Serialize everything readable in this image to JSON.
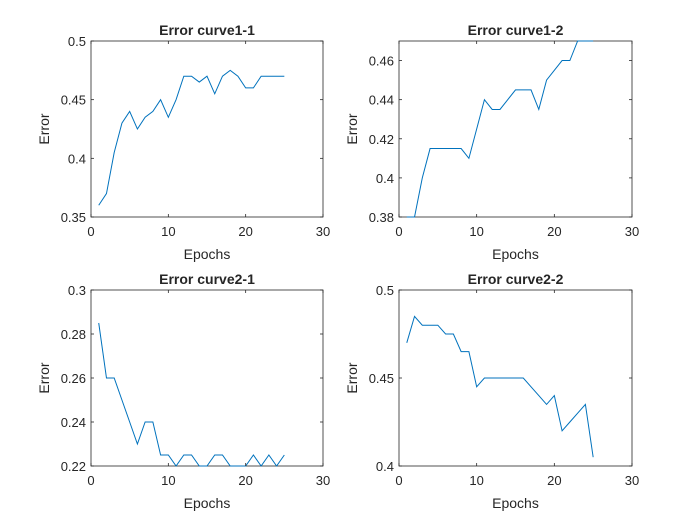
{
  "chart_data": [
    {
      "type": "line",
      "title": "Error curve1-1",
      "xlabel": "Epochs",
      "ylabel": "Error",
      "xlim": [
        0,
        30
      ],
      "ylim": [
        0.35,
        0.5
      ],
      "xticks": [
        0,
        10,
        20,
        30
      ],
      "xtick_labels": [
        "0",
        "10",
        "20",
        "30"
      ],
      "yticks": [
        0.35,
        0.4,
        0.45,
        0.5
      ],
      "ytick_labels": [
        "0.35",
        "0.4",
        "0.45",
        "0.5"
      ],
      "grid": false,
      "series": [
        {
          "color": "#0072bd",
          "x": [
            1,
            2,
            3,
            4,
            5,
            6,
            7,
            8,
            9,
            10,
            11,
            12,
            13,
            14,
            15,
            16,
            17,
            18,
            19,
            20,
            21,
            22,
            23,
            24,
            25
          ],
          "y": [
            0.36,
            0.37,
            0.405,
            0.43,
            0.44,
            0.425,
            0.435,
            0.44,
            0.45,
            0.435,
            0.45,
            0.47,
            0.47,
            0.465,
            0.47,
            0.455,
            0.47,
            0.475,
            0.47,
            0.46,
            0.46,
            0.47,
            0.47,
            0.47,
            0.47
          ]
        }
      ]
    },
    {
      "type": "line",
      "title": "Error curve1-2",
      "xlabel": "Epochs",
      "ylabel": "Error",
      "xlim": [
        0,
        30
      ],
      "ylim": [
        0.38,
        0.47
      ],
      "xticks": [
        0,
        10,
        20,
        30
      ],
      "xtick_labels": [
        "0",
        "10",
        "20",
        "30"
      ],
      "yticks": [
        0.38,
        0.4,
        0.42,
        0.44,
        0.46
      ],
      "ytick_labels": [
        "0.38",
        "0.4",
        "0.42",
        "0.44",
        "0.46"
      ],
      "grid": false,
      "series": [
        {
          "color": "#0072bd",
          "x": [
            1,
            2,
            3,
            4,
            5,
            6,
            7,
            8,
            9,
            10,
            11,
            12,
            13,
            14,
            15,
            16,
            17,
            18,
            19,
            20,
            21,
            22,
            23,
            24,
            25
          ],
          "y": [
            0.38,
            0.38,
            0.4,
            0.415,
            0.415,
            0.415,
            0.415,
            0.415,
            0.41,
            0.425,
            0.44,
            0.435,
            0.435,
            0.44,
            0.445,
            0.445,
            0.445,
            0.435,
            0.45,
            0.455,
            0.46,
            0.46,
            0.47,
            0.47,
            0.47
          ]
        }
      ]
    },
    {
      "type": "line",
      "title": "Error curve2-1",
      "xlabel": "Epochs",
      "ylabel": "Error",
      "xlim": [
        0,
        30
      ],
      "ylim": [
        0.22,
        0.3
      ],
      "xticks": [
        0,
        10,
        20,
        30
      ],
      "xtick_labels": [
        "0",
        "10",
        "20",
        "30"
      ],
      "yticks": [
        0.22,
        0.24,
        0.26,
        0.28,
        0.3
      ],
      "ytick_labels": [
        "0.22",
        "0.24",
        "0.26",
        "0.28",
        "0.3"
      ],
      "grid": false,
      "series": [
        {
          "color": "#0072bd",
          "x": [
            1,
            2,
            3,
            4,
            5,
            6,
            7,
            8,
            9,
            10,
            11,
            12,
            13,
            14,
            15,
            16,
            17,
            18,
            19,
            20,
            21,
            22,
            23,
            24,
            25
          ],
          "y": [
            0.285,
            0.26,
            0.26,
            0.25,
            0.24,
            0.23,
            0.24,
            0.24,
            0.225,
            0.225,
            0.22,
            0.225,
            0.225,
            0.22,
            0.22,
            0.225,
            0.225,
            0.22,
            0.22,
            0.22,
            0.225,
            0.22,
            0.225,
            0.22,
            0.225
          ]
        }
      ]
    },
    {
      "type": "line",
      "title": "Error curve2-2",
      "xlabel": "Epochs",
      "ylabel": "Error",
      "xlim": [
        0,
        30
      ],
      "ylim": [
        0.4,
        0.5
      ],
      "xticks": [
        0,
        10,
        20,
        30
      ],
      "xtick_labels": [
        "0",
        "10",
        "20",
        "30"
      ],
      "yticks": [
        0.4,
        0.45,
        0.5
      ],
      "ytick_labels": [
        "0.4",
        "0.45",
        "0.5"
      ],
      "grid": false,
      "series": [
        {
          "color": "#0072bd",
          "x": [
            1,
            2,
            3,
            4,
            5,
            6,
            7,
            8,
            9,
            10,
            11,
            12,
            13,
            14,
            15,
            16,
            17,
            18,
            19,
            20,
            21,
            22,
            23,
            24,
            25
          ],
          "y": [
            0.47,
            0.485,
            0.48,
            0.48,
            0.48,
            0.475,
            0.475,
            0.465,
            0.465,
            0.445,
            0.45,
            0.45,
            0.45,
            0.45,
            0.45,
            0.45,
            0.445,
            0.44,
            0.435,
            0.44,
            0.42,
            0.425,
            0.43,
            0.435,
            0.405
          ]
        }
      ]
    }
  ]
}
